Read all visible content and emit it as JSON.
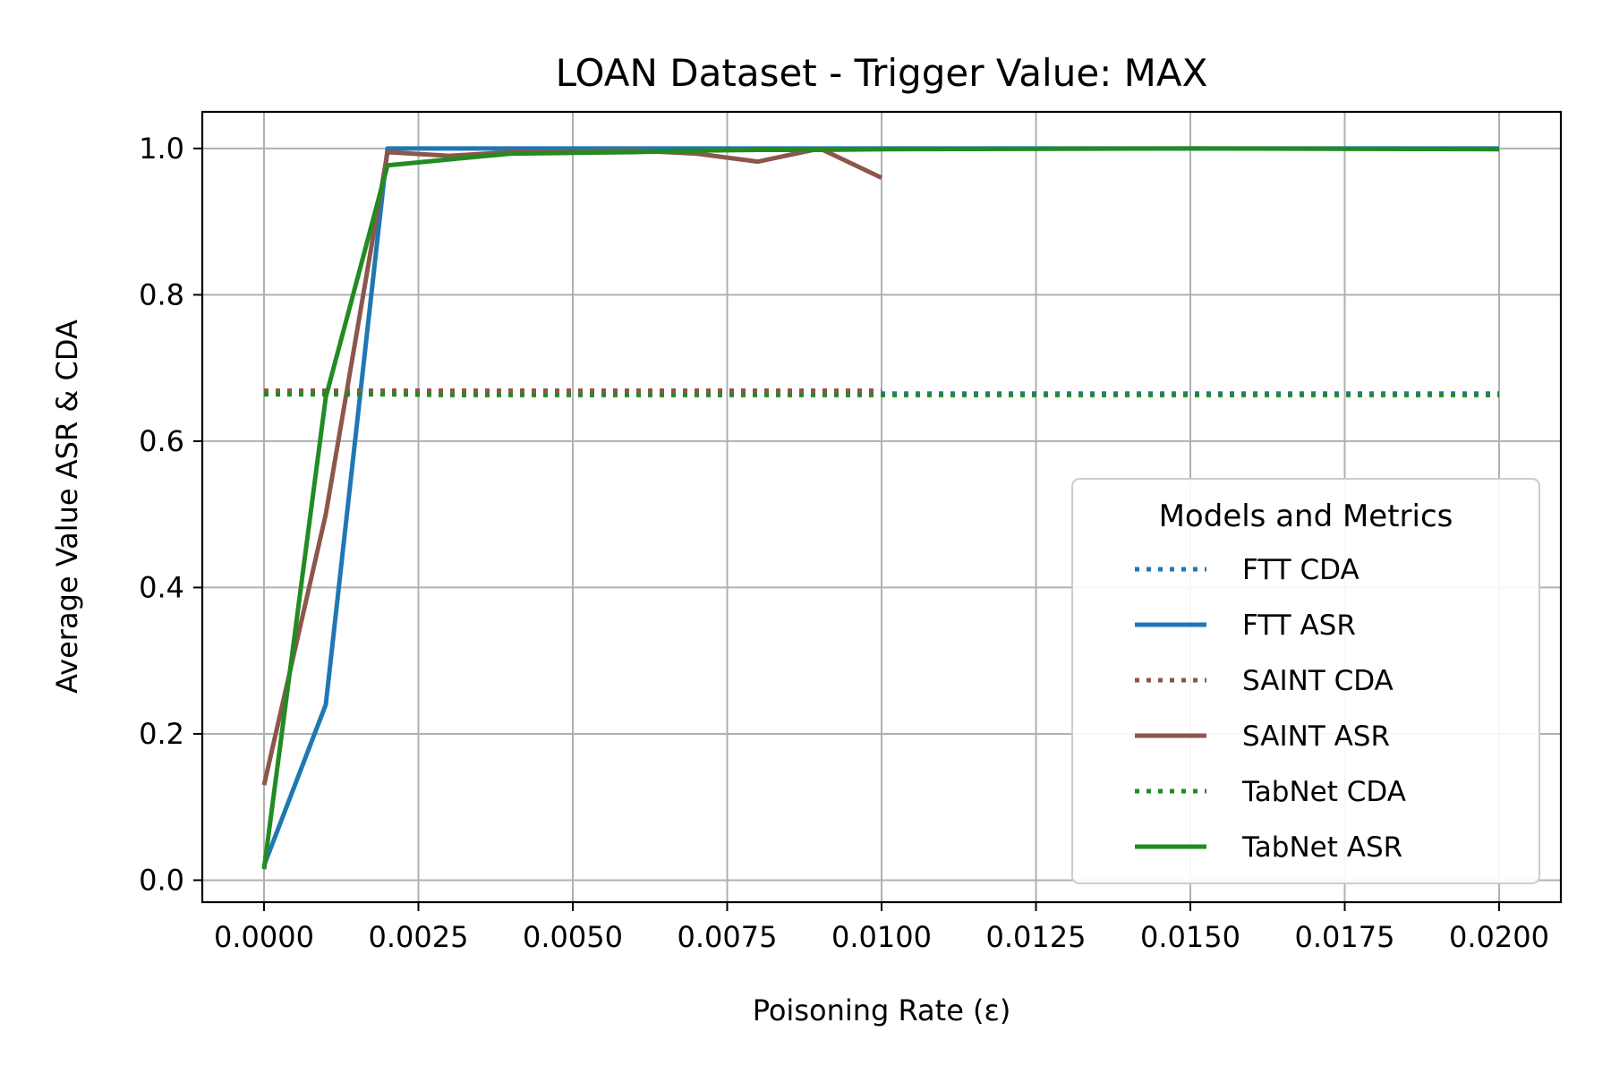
{
  "chart_data": {
    "type": "line",
    "title": "LOAN Dataset - Trigger Value: MAX",
    "xlabel": "Poisoning Rate (ε)",
    "ylabel": "Average Value ASR & CDA",
    "xlim": [
      -0.001,
      0.021
    ],
    "ylim": [
      -0.03,
      1.05
    ],
    "xticks": [
      0,
      0.0025,
      0.005,
      0.0075,
      0.01,
      0.0125,
      0.015,
      0.0175,
      0.02
    ],
    "xtick_labels": [
      "0.0000",
      "0.0025",
      "0.0050",
      "0.0075",
      "0.0100",
      "0.0125",
      "0.0150",
      "0.0175",
      "0.0200"
    ],
    "yticks": [
      0,
      0.2,
      0.4,
      0.6,
      0.8,
      1.0
    ],
    "ytick_labels": [
      "0.0",
      "0.2",
      "0.4",
      "0.6",
      "0.8",
      "1.0"
    ],
    "grid": true,
    "legend": {
      "title": "Models and Metrics",
      "position": "center-right"
    },
    "series": [
      {
        "name": "FTT CDA",
        "color": "#1f77b4",
        "style": "dotted",
        "x": [
          0,
          0.001,
          0.002,
          0.003,
          0.004,
          0.005,
          0.006,
          0.007,
          0.008,
          0.009,
          0.01,
          0.015,
          0.02
        ],
        "y": [
          0.665,
          0.665,
          0.665,
          0.665,
          0.665,
          0.665,
          0.665,
          0.665,
          0.665,
          0.665,
          0.665,
          0.665,
          0.665
        ]
      },
      {
        "name": "FTT ASR",
        "color": "#1f77b4",
        "style": "solid",
        "x": [
          0,
          0.001,
          0.002,
          0.003,
          0.004,
          0.005,
          0.006,
          0.007,
          0.008,
          0.009,
          0.01,
          0.015,
          0.02
        ],
        "y": [
          0.02,
          0.24,
          1.0,
          1.0,
          1.0,
          1.0,
          1.0,
          1.0,
          1.0,
          1.0,
          1.0,
          1.0,
          1.0
        ]
      },
      {
        "name": "SAINT CDA",
        "color": "#8c564b",
        "style": "dotted",
        "x": [
          0,
          0.001,
          0.002,
          0.003,
          0.004,
          0.005,
          0.006,
          0.007,
          0.008,
          0.009,
          0.01
        ],
        "y": [
          0.669,
          0.669,
          0.669,
          0.669,
          0.669,
          0.669,
          0.669,
          0.669,
          0.669,
          0.669,
          0.669
        ]
      },
      {
        "name": "SAINT ASR",
        "color": "#8c564b",
        "style": "solid",
        "x": [
          0,
          0.001,
          0.002,
          0.003,
          0.004,
          0.005,
          0.006,
          0.007,
          0.008,
          0.009,
          0.01
        ],
        "y": [
          0.13,
          0.5,
          0.995,
          0.99,
          0.995,
          0.996,
          0.997,
          0.993,
          0.982,
          1.0,
          0.96
        ]
      },
      {
        "name": "TabNet CDA",
        "color": "#228b22",
        "style": "dotted",
        "x": [
          0,
          0.001,
          0.002,
          0.003,
          0.004,
          0.005,
          0.006,
          0.007,
          0.008,
          0.009,
          0.01,
          0.015,
          0.02
        ],
        "y": [
          0.664,
          0.664,
          0.664,
          0.663,
          0.663,
          0.663,
          0.663,
          0.663,
          0.663,
          0.663,
          0.663,
          0.663,
          0.663
        ]
      },
      {
        "name": "TabNet ASR",
        "color": "#228b22",
        "style": "solid",
        "x": [
          0,
          0.001,
          0.002,
          0.003,
          0.004,
          0.005,
          0.006,
          0.007,
          0.008,
          0.009,
          0.01,
          0.015,
          0.02
        ],
        "y": [
          0.015,
          0.66,
          0.977,
          0.985,
          0.993,
          0.994,
          0.995,
          0.997,
          0.998,
          0.998,
          0.999,
          1.0,
          0.999
        ]
      }
    ]
  }
}
